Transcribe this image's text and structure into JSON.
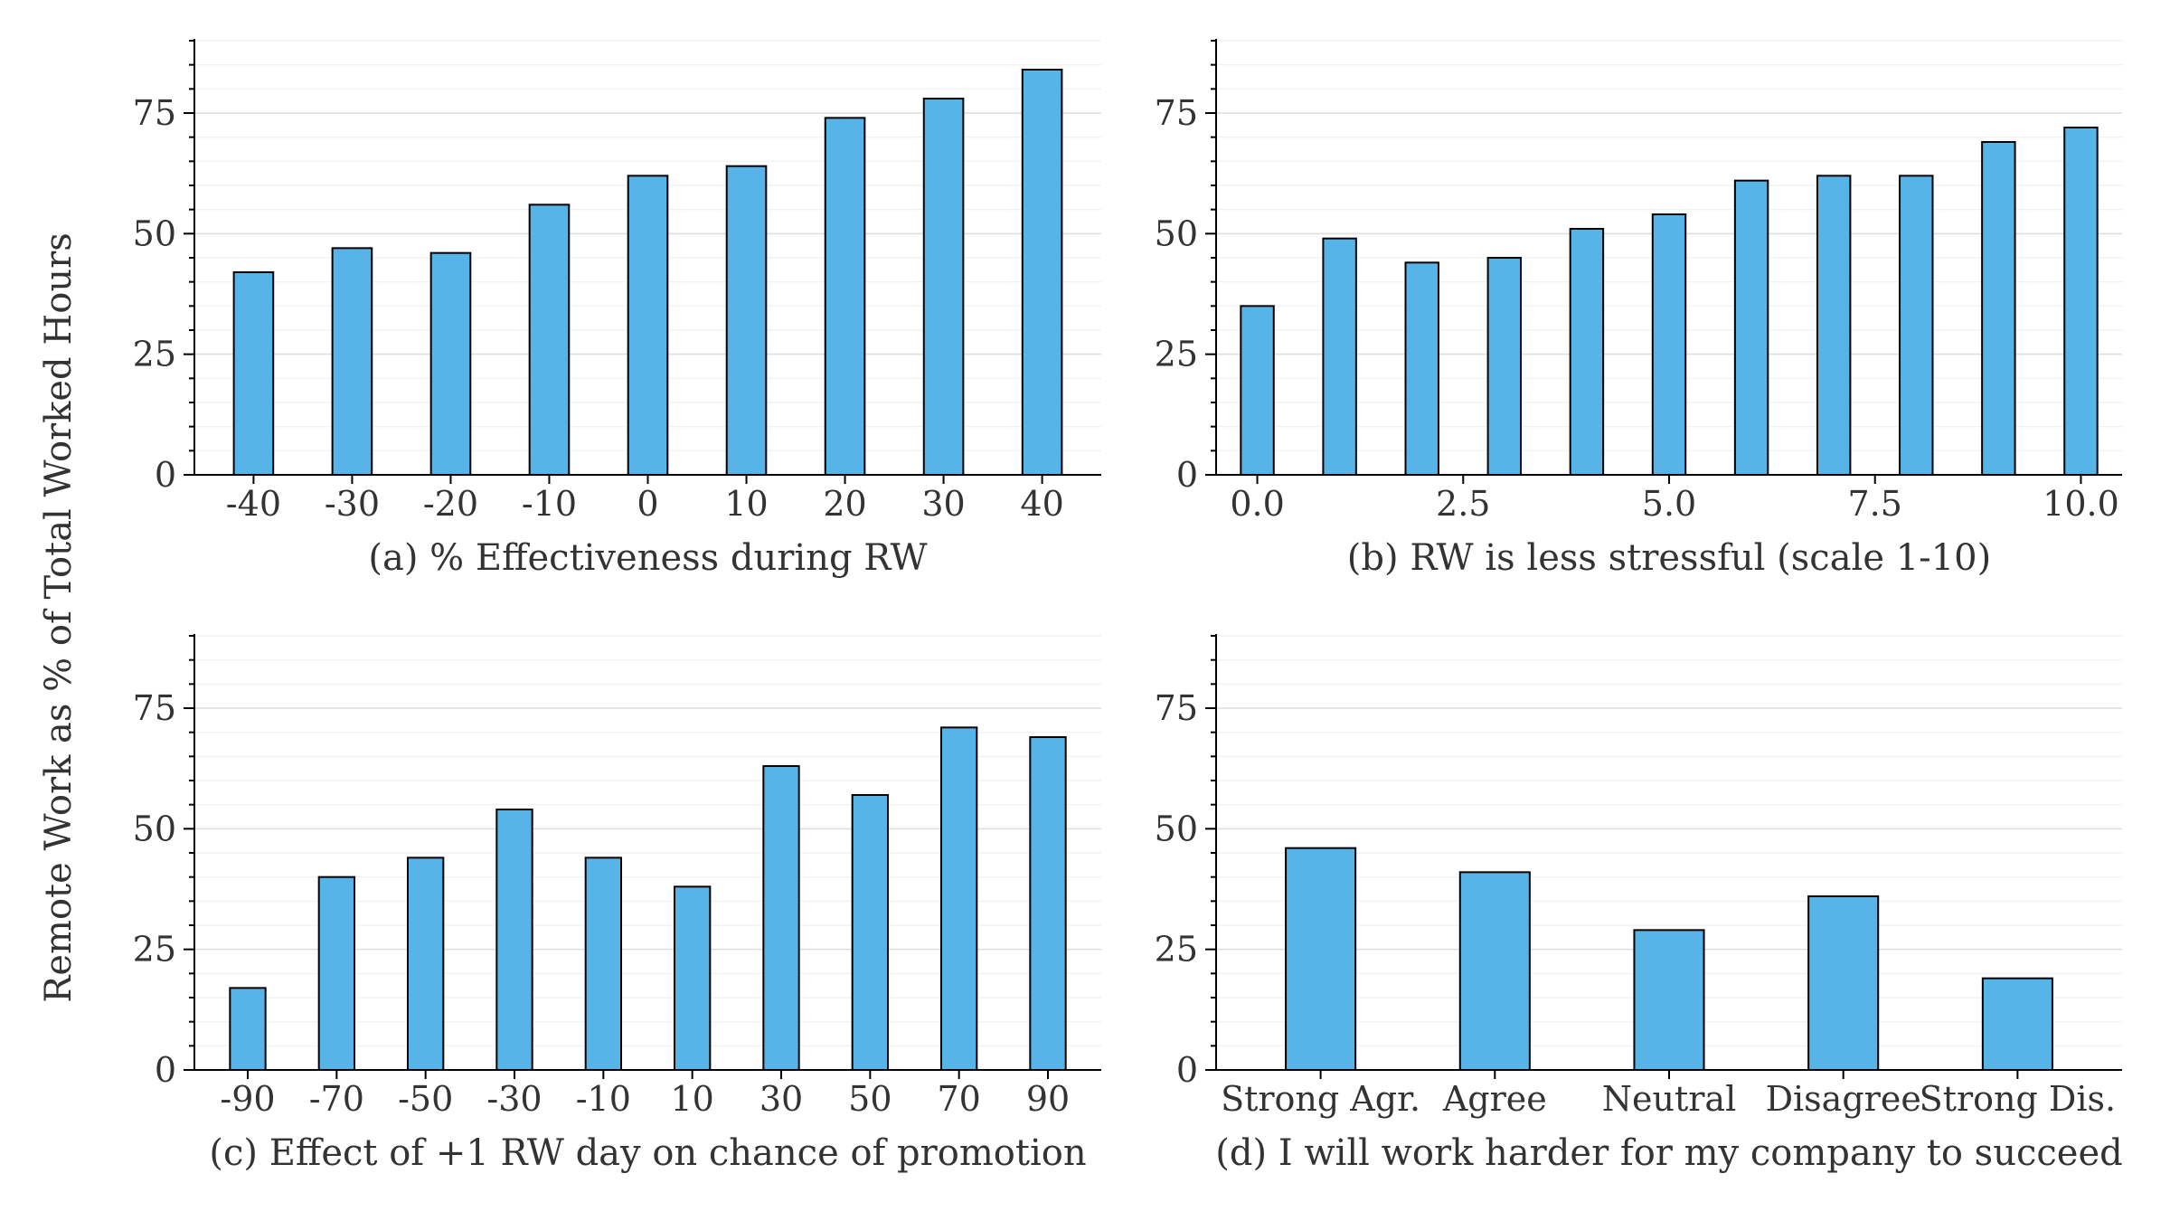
{
  "figure": {
    "ylabel": "Remote Work as % of Total Worked Hours",
    "bar_color": "#56B4E9"
  },
  "chart_data": [
    {
      "id": "a",
      "type": "bar",
      "title": "",
      "xlabel": "(a) % Effectiveness during RW",
      "ylabel": "",
      "x_scale": "categorical",
      "categories": [
        "-40",
        "-30",
        "-20",
        "-10",
        "0",
        "10",
        "20",
        "30",
        "40"
      ],
      "values": [
        42,
        47,
        46,
        56,
        62,
        64,
        74,
        78,
        84
      ],
      "ylim": [
        0,
        90
      ],
      "yticks": [
        0,
        25,
        50,
        75
      ],
      "grid": true
    },
    {
      "id": "b",
      "type": "bar",
      "title": "",
      "xlabel": "(b) RW is less stressful (scale 1-10)",
      "ylabel": "",
      "x_scale": "numeric",
      "x": [
        0,
        1,
        2,
        3,
        4,
        5,
        6,
        7,
        8,
        9,
        10
      ],
      "values": [
        35,
        49,
        44,
        45,
        51,
        54,
        61,
        62,
        62,
        69,
        72
      ],
      "xlim": [
        -0.5,
        10.5
      ],
      "xticks": [
        0,
        2.5,
        5,
        7.5,
        10
      ],
      "xtick_labels": [
        "0.0",
        "2.5",
        "5.0",
        "7.5",
        "10.0"
      ],
      "ylim": [
        0,
        90
      ],
      "yticks": [
        0,
        25,
        50,
        75
      ],
      "grid": true
    },
    {
      "id": "c",
      "type": "bar",
      "title": "",
      "xlabel": "(c) Effect of +1 RW day on chance of promotion",
      "ylabel": "",
      "x_scale": "categorical",
      "categories": [
        "-90",
        "-70",
        "-50",
        "-30",
        "-10",
        "10",
        "30",
        "50",
        "70",
        "90"
      ],
      "values": [
        17,
        40,
        44,
        54,
        44,
        38,
        63,
        57,
        71,
        69
      ],
      "ylim": [
        0,
        90
      ],
      "yticks": [
        0,
        25,
        50,
        75
      ],
      "grid": true
    },
    {
      "id": "d",
      "type": "bar",
      "title": "",
      "xlabel": "(d) I will work harder for my company to succeed",
      "ylabel": "",
      "x_scale": "categorical",
      "categories": [
        "Strong Agr.",
        "Agree",
        "Neutral",
        "Disagree",
        "Strong Dis."
      ],
      "values": [
        46,
        41,
        29,
        36,
        19
      ],
      "ylim": [
        0,
        90
      ],
      "yticks": [
        0,
        25,
        50,
        75
      ],
      "grid": true
    }
  ]
}
